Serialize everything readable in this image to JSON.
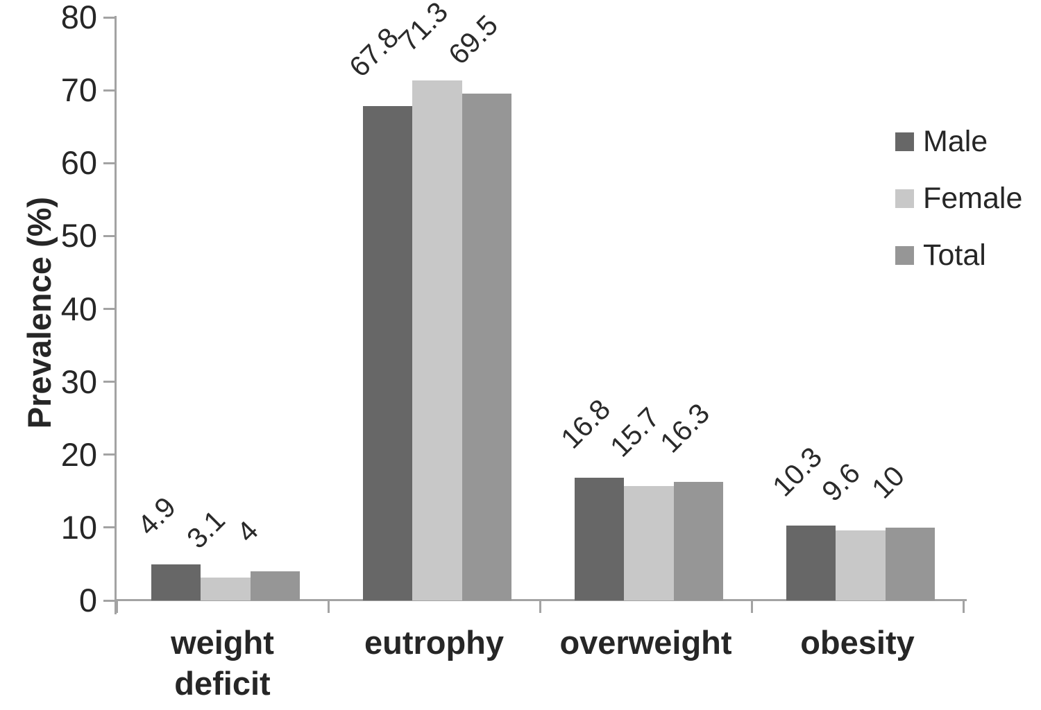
{
  "chart_data": {
    "type": "bar",
    "title": "",
    "ylabel": "Prevalence (%)",
    "xlabel": "",
    "categories": [
      "weight deficit",
      "eutrophy",
      "overweight",
      "obesity"
    ],
    "series": [
      {
        "name": "Male",
        "color": "#676767",
        "values": [
          4.9,
          67.8,
          16.8,
          10.3
        ]
      },
      {
        "name": "Female",
        "color": "#c8c8c8",
        "values": [
          3.1,
          71.3,
          15.7,
          9.6
        ]
      },
      {
        "name": "Total",
        "color": "#969696",
        "values": [
          4,
          69.5,
          16.3,
          10
        ]
      }
    ],
    "value_labels": [
      "4.9",
      "3.1",
      "4",
      "67.8",
      "71.3",
      "69.5",
      "16.8",
      "15.7",
      "16.3",
      "10.3",
      "9.6",
      "10"
    ],
    "ylim": [
      0,
      80
    ],
    "yticks": [
      0,
      10,
      20,
      30,
      40,
      50,
      60,
      70,
      80
    ],
    "grid": false,
    "legend_position": "right",
    "value_label_rotation_deg": 45,
    "axis_color": "#a3a3a3",
    "text_color": "#262626"
  }
}
